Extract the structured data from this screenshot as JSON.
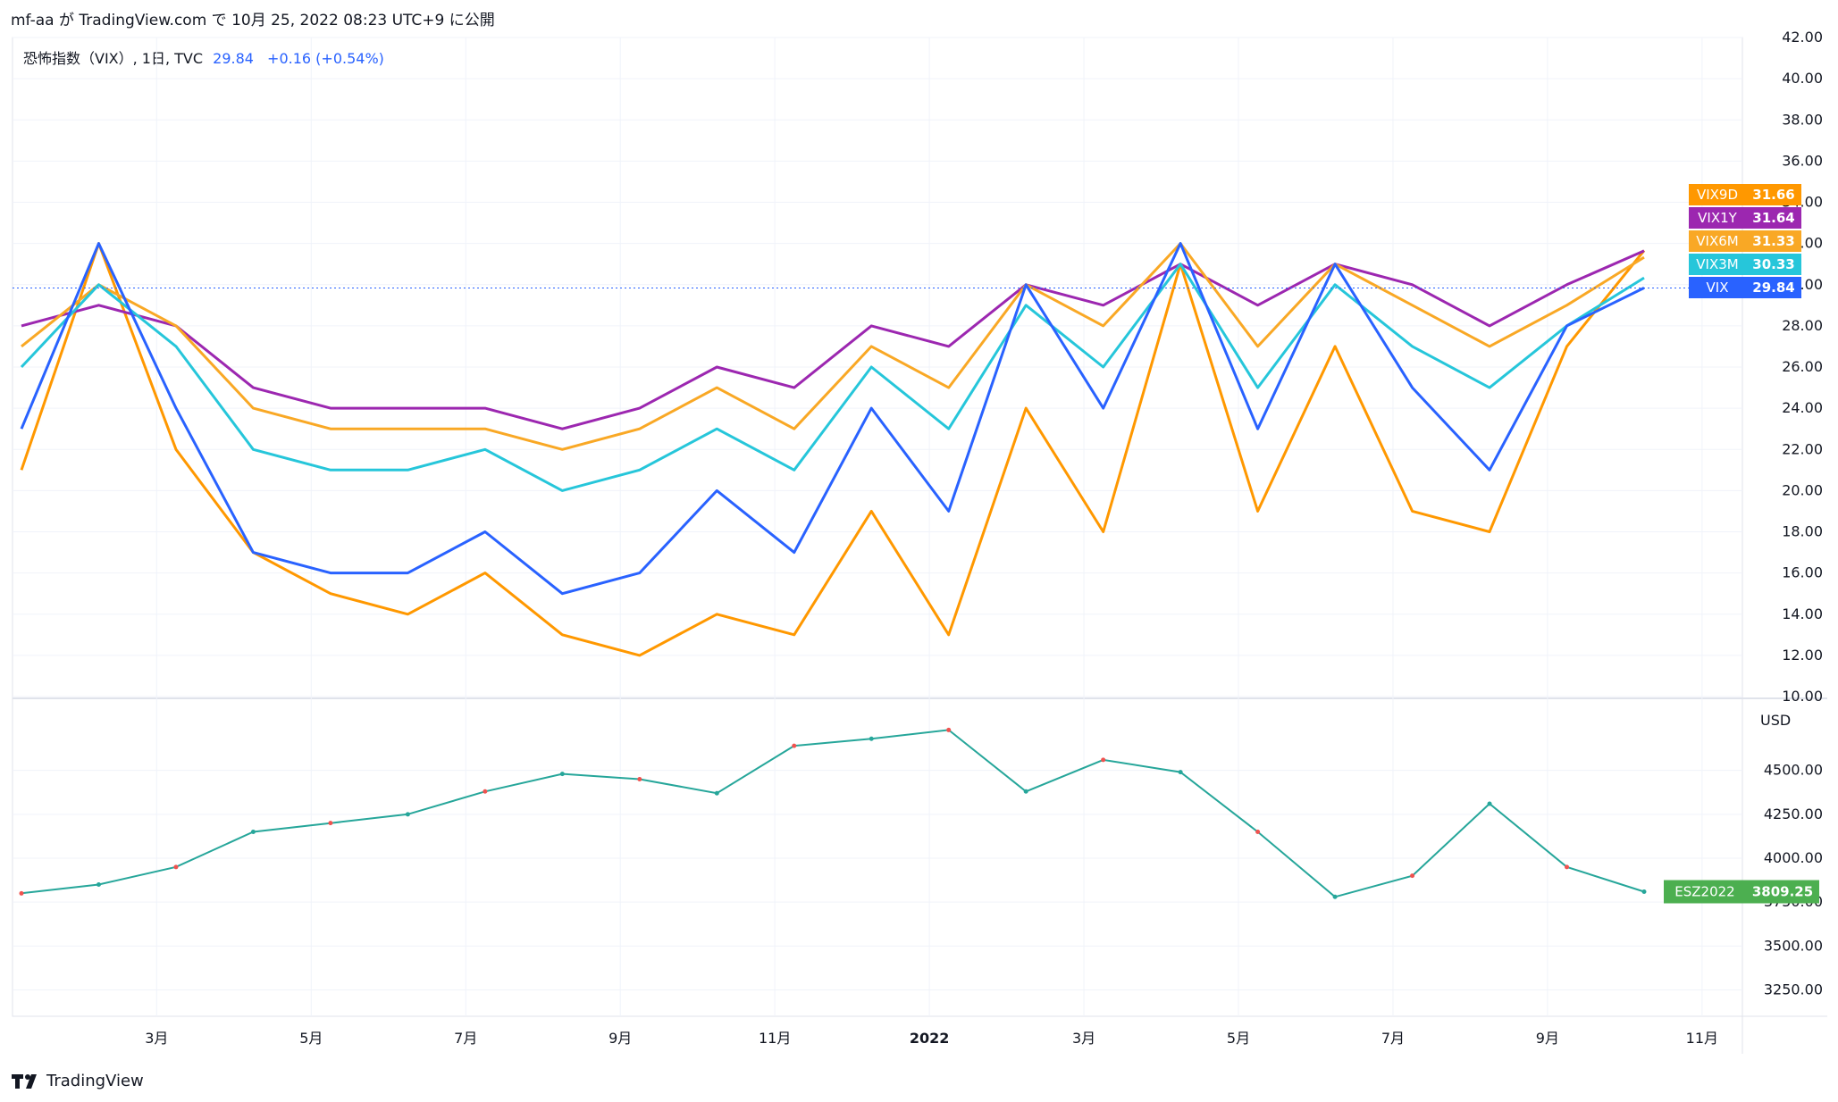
{
  "header": {
    "title": "mf-aa が TradingView.com で 10月 25, 2022 08:23 UTC+9 に公開"
  },
  "legend": {
    "symbol": "恐怖指数（VIX）, 1日, TVC",
    "last": "29.84",
    "change": "+0.16 (+0.54%)"
  },
  "footer": {
    "brand": "TradingView"
  },
  "chart_data": [
    {
      "type": "line",
      "ylim": [
        10,
        42
      ],
      "y_ticks": [
        "42.00",
        "40.00",
        "38.00",
        "36.00",
        "34.00",
        "32.00",
        "30.00",
        "28.00",
        "26.00",
        "24.00",
        "22.00",
        "20.00",
        "18.00",
        "16.00",
        "14.00",
        "12.00",
        "10.00"
      ],
      "x_ticks": [
        "3月",
        "5月",
        "7月",
        "9月",
        "11月",
        "2022",
        "3月",
        "5月",
        "7月",
        "9月",
        "11月"
      ],
      "x": [
        "2021-01",
        "2021-02",
        "2021-03",
        "2021-04",
        "2021-05",
        "2021-06",
        "2021-07",
        "2021-08",
        "2021-09",
        "2021-10",
        "2021-11",
        "2021-12",
        "2022-01",
        "2022-02",
        "2022-03",
        "2022-04",
        "2022-05",
        "2022-06",
        "2022-07",
        "2022-08",
        "2022-09",
        "2022-10"
      ],
      "series": [
        {
          "name": "VIX9D",
          "color": "#ff9800",
          "last": "31.66",
          "values": [
            21,
            32,
            22,
            17,
            15,
            14,
            16,
            13,
            12,
            14,
            13,
            19,
            13,
            24,
            18,
            31,
            19,
            27,
            19,
            18,
            27,
            31.66
          ]
        },
        {
          "name": "VIX1Y",
          "color": "#9c27b0",
          "last": "31.64",
          "values": [
            28,
            29,
            28,
            25,
            24,
            24,
            24,
            23,
            24,
            26,
            25,
            28,
            27,
            30,
            29,
            31,
            29,
            31,
            30,
            28,
            30,
            31.64
          ]
        },
        {
          "name": "VIX6M",
          "color": "#f9a825",
          "last": "31.33",
          "values": [
            27,
            30,
            28,
            24,
            23,
            23,
            23,
            22,
            23,
            25,
            23,
            27,
            25,
            30,
            28,
            32,
            27,
            31,
            29,
            27,
            29,
            31.33
          ]
        },
        {
          "name": "VIX3M",
          "color": "#26c6da",
          "last": "30.33",
          "values": [
            26,
            30,
            27,
            22,
            21,
            21,
            22,
            20,
            21,
            23,
            21,
            26,
            23,
            29,
            26,
            31,
            25,
            30,
            27,
            25,
            28,
            30.33
          ]
        },
        {
          "name": "VIX",
          "color": "#2962ff",
          "last": "29.84",
          "values": [
            23,
            32,
            24,
            17,
            16,
            16,
            18,
            15,
            16,
            20,
            17,
            24,
            19,
            30,
            24,
            32,
            23,
            31,
            25,
            21,
            28,
            29.84
          ]
        }
      ]
    },
    {
      "type": "line",
      "name": "ESZ2022",
      "ylim": [
        3100,
        4900
      ],
      "unit_label": "USD",
      "y_ticks": [
        "4500.00",
        "4250.00",
        "4000.00",
        "3750.00",
        "3500.00",
        "3250.00"
      ],
      "last": "3809.25",
      "color": "#4caf50",
      "x": [
        "2021-01",
        "2021-02",
        "2021-03",
        "2021-04",
        "2021-05",
        "2021-06",
        "2021-07",
        "2021-08",
        "2021-09",
        "2021-10",
        "2021-11",
        "2021-12",
        "2022-01",
        "2022-02",
        "2022-03",
        "2022-04",
        "2022-05",
        "2022-06",
        "2022-07",
        "2022-08",
        "2022-09",
        "2022-10"
      ],
      "values": [
        3800,
        3850,
        3950,
        4150,
        4200,
        4250,
        4380,
        4480,
        4450,
        4370,
        4640,
        4680,
        4730,
        4380,
        4560,
        4490,
        4150,
        3780,
        3900,
        4310,
        3950,
        3809.25
      ]
    }
  ]
}
